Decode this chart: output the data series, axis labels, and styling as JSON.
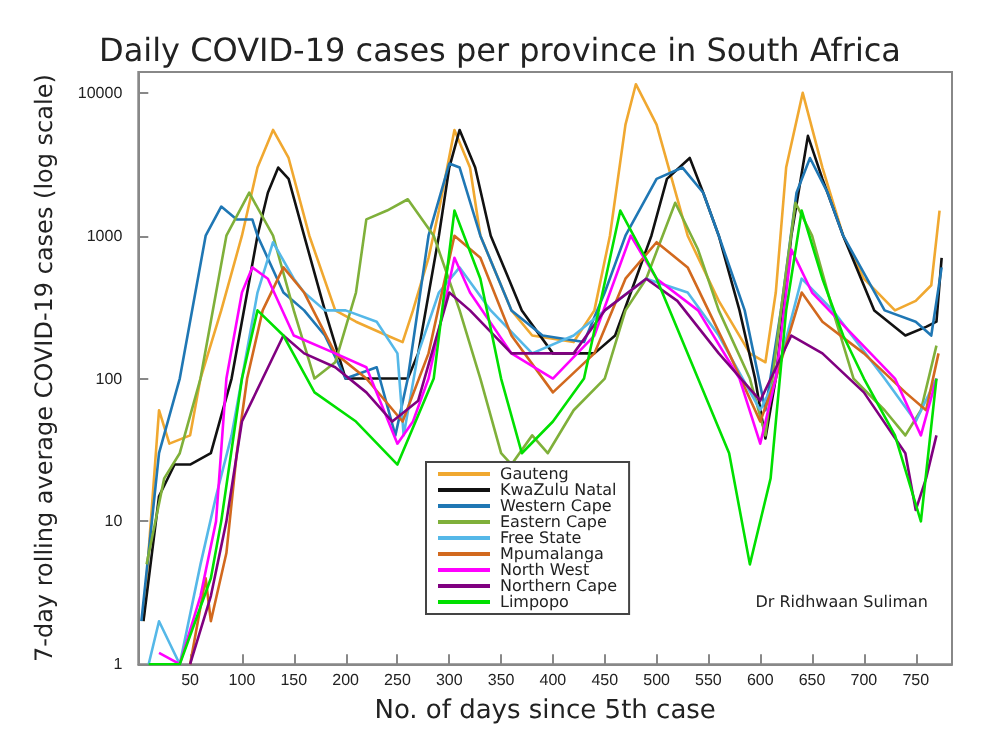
{
  "chart_data": {
    "type": "line",
    "title": "Daily COVID-19 cases per province in South Africa",
    "xlabel": "No. of days since 5th case",
    "ylabel": "7-day rolling average COVID-19 cases (log scale)",
    "log": "y",
    "grid": false,
    "legend": "bottom",
    "marker": "none",
    "line_style": "solid",
    "xlim": [
      0,
      785
    ],
    "xticks": [
      50,
      100,
      150,
      200,
      250,
      300,
      350,
      400,
      450,
      500,
      550,
      600,
      650,
      700,
      750
    ],
    "ylim": [
      1,
      14000
    ],
    "yticks": [
      1,
      10,
      100,
      1000,
      10000
    ],
    "annotations": [
      "Dr Ridhwaan Suliman"
    ],
    "series": [
      {
        "name": "Gauteng",
        "color": "#f0a830",
        "x": [
          5,
          20,
          30,
          50,
          60,
          80,
          100,
          115,
          130,
          145,
          165,
          190,
          210,
          240,
          255,
          265,
          280,
          290,
          305,
          320,
          330,
          360,
          380,
          420,
          440,
          455,
          470,
          480,
          500,
          530,
          560,
          590,
          605,
          615,
          625,
          641,
          660,
          680,
          700,
          730,
          750,
          765,
          773
        ],
        "values": [
          2,
          60,
          35,
          40,
          100,
          300,
          1000,
          3000,
          5500,
          3500,
          1000,
          300,
          250,
          200,
          180,
          300,
          700,
          1500,
          5500,
          3000,
          1000,
          300,
          200,
          180,
          300,
          1000,
          6000,
          11500,
          6000,
          1000,
          350,
          150,
          130,
          400,
          3000,
          10000,
          3000,
          1000,
          500,
          300,
          350,
          450,
          1500
        ]
      },
      {
        "name": "KwaZulu Natal",
        "color": "#111111",
        "x": [
          5,
          20,
          35,
          50,
          70,
          90,
          115,
          125,
          135,
          145,
          160,
          180,
          200,
          230,
          260,
          270,
          290,
          300,
          310,
          325,
          340,
          370,
          400,
          440,
          460,
          480,
          495,
          510,
          532,
          545,
          560,
          580,
          595,
          605,
          615,
          630,
          646,
          660,
          680,
          710,
          740,
          760,
          770,
          775
        ],
        "values": [
          2,
          15,
          25,
          25,
          30,
          100,
          1000,
          2000,
          3000,
          2500,
          1000,
          300,
          100,
          100,
          100,
          150,
          1000,
          3000,
          5500,
          3000,
          1000,
          300,
          150,
          150,
          200,
          500,
          1000,
          2500,
          3500,
          2000,
          1000,
          300,
          100,
          38,
          100,
          1000,
          5000,
          2500,
          1000,
          300,
          200,
          230,
          250,
          700
        ]
      },
      {
        "name": "Western Cape",
        "color": "#1f77b4",
        "x": [
          3,
          20,
          40,
          65,
          80,
          95,
          110,
          115,
          140,
          160,
          180,
          200,
          230,
          248,
          260,
          280,
          300,
          310,
          330,
          360,
          390,
          430,
          450,
          470,
          500,
          525,
          545,
          560,
          585,
          605,
          620,
          635,
          648,
          665,
          680,
          720,
          750,
          765,
          775
        ],
        "values": [
          2,
          30,
          100,
          1000,
          1600,
          1300,
          1300,
          1000,
          400,
          300,
          200,
          100,
          120,
          40,
          100,
          1000,
          3200,
          3000,
          1000,
          300,
          200,
          180,
          400,
          1000,
          2500,
          3000,
          2000,
          1000,
          300,
          60,
          300,
          2000,
          3500,
          2000,
          1000,
          300,
          250,
          200,
          600
        ]
      },
      {
        "name": "Eastern Cape",
        "color": "#7fb03a",
        "x": [
          8,
          25,
          40,
          60,
          85,
          107,
          130,
          150,
          170,
          190,
          210,
          220,
          240,
          260,
          285,
          310,
          330,
          350,
          360,
          380,
          395,
          420,
          450,
          470,
          490,
          518,
          540,
          560,
          590,
          605,
          620,
          634,
          650,
          670,
          690,
          720,
          740,
          755,
          770
        ],
        "values": [
          5,
          20,
          30,
          100,
          1000,
          2000,
          1000,
          300,
          100,
          130,
          400,
          1300,
          1500,
          1800,
          1000,
          300,
          100,
          30,
          25,
          40,
          30,
          60,
          100,
          300,
          500,
          1700,
          800,
          300,
          100,
          40,
          300,
          1700,
          1000,
          300,
          100,
          60,
          40,
          60,
          170
        ]
      },
      {
        "name": "Free State",
        "color": "#55b8e8",
        "x": [
          10,
          20,
          40,
          60,
          75,
          90,
          100,
          115,
          130,
          150,
          160,
          180,
          200,
          230,
          250,
          256,
          270,
          290,
          310,
          340,
          380,
          420,
          450,
          490,
          530,
          560,
          600,
          615,
          640,
          670,
          720,
          750,
          770
        ],
        "values": [
          1,
          2,
          1,
          5,
          15,
          40,
          100,
          400,
          900,
          500,
          400,
          300,
          300,
          250,
          150,
          40,
          150,
          400,
          600,
          300,
          150,
          200,
          300,
          500,
          400,
          200,
          60,
          100,
          500,
          300,
          100,
          50,
          100
        ]
      },
      {
        "name": "Mpumalanga",
        "color": "#d2691e",
        "x": [
          50,
          65,
          70,
          85,
          95,
          105,
          120,
          140,
          160,
          190,
          220,
          255,
          280,
          305,
          330,
          360,
          400,
          440,
          470,
          500,
          530,
          570,
          600,
          615,
          640,
          660,
          700,
          740,
          760,
          772
        ],
        "values": [
          1,
          4,
          2,
          6,
          30,
          100,
          300,
          600,
          400,
          150,
          100,
          50,
          150,
          1000,
          700,
          200,
          80,
          150,
          500,
          900,
          600,
          150,
          50,
          100,
          400,
          250,
          150,
          80,
          60,
          150
        ]
      },
      {
        "name": "North West",
        "color": "#ff00ff",
        "x": [
          20,
          40,
          60,
          75,
          85,
          100,
          110,
          125,
          150,
          190,
          220,
          250,
          265,
          280,
          305,
          320,
          360,
          400,
          440,
          475,
          500,
          540,
          580,
          600,
          615,
          630,
          650,
          690,
          730,
          755,
          770
        ],
        "values": [
          1.2,
          1,
          3,
          10,
          100,
          400,
          600,
          500,
          200,
          150,
          120,
          35,
          50,
          100,
          700,
          400,
          150,
          100,
          200,
          1000,
          500,
          300,
          100,
          35,
          100,
          800,
          400,
          200,
          100,
          40,
          100
        ]
      },
      {
        "name": "Northern Cape",
        "color": "#800080",
        "x": [
          50,
          70,
          85,
          100,
          120,
          140,
          160,
          190,
          220,
          245,
          270,
          300,
          320,
          360,
          420,
          450,
          490,
          520,
          560,
          600,
          630,
          660,
          700,
          740,
          750,
          760,
          770
        ],
        "values": [
          1,
          3,
          10,
          50,
          100,
          200,
          150,
          120,
          80,
          50,
          70,
          400,
          300,
          150,
          150,
          300,
          500,
          350,
          150,
          70,
          200,
          150,
          80,
          30,
          12,
          20,
          40
        ]
      },
      {
        "name": "Limpopo",
        "color": "#00e000",
        "x": [
          10,
          40,
          70,
          80,
          100,
          115,
          140,
          170,
          210,
          250,
          285,
          305,
          330,
          350,
          370,
          400,
          430,
          465,
          500,
          540,
          570,
          590,
          610,
          625,
          640,
          660,
          680,
          700,
          730,
          755,
          770
        ],
        "values": [
          1,
          1,
          4,
          10,
          100,
          300,
          200,
          80,
          50,
          25,
          100,
          1500,
          500,
          100,
          30,
          50,
          100,
          1500,
          500,
          100,
          30,
          5,
          20,
          300,
          1500,
          500,
          200,
          100,
          40,
          10,
          100
        ]
      }
    ]
  }
}
